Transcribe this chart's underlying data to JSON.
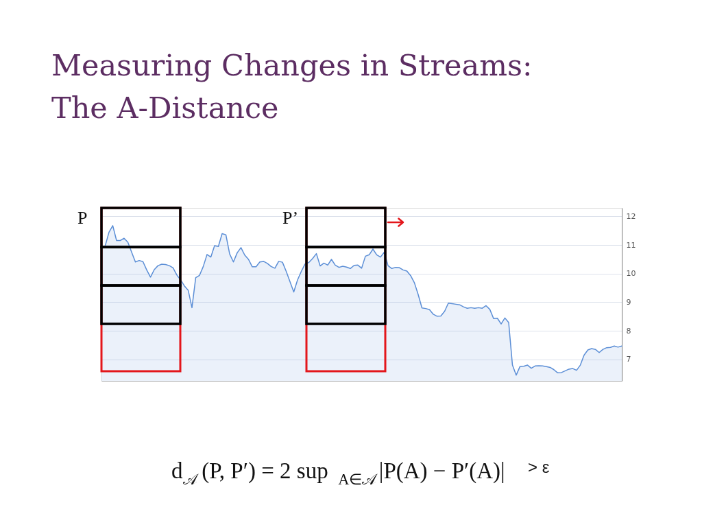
{
  "chart_data": {
    "type": "area",
    "title": "Measuring Changes in Streams:\nThe A-Distance",
    "categories": [
      null,
      null,
      null,
      null,
      null,
      null,
      null,
      null,
      null,
      null,
      null,
      null,
      null,
      null,
      null,
      null,
      null,
      null,
      null,
      null,
      null,
      null,
      null,
      null,
      null,
      null,
      null,
      null,
      null,
      null,
      null,
      null,
      null,
      null,
      null,
      null,
      null,
      null,
      null,
      null,
      null,
      null,
      null,
      null,
      null,
      null,
      null,
      null,
      null,
      null,
      null,
      null,
      null,
      null,
      null,
      null,
      null,
      null,
      null,
      null,
      null,
      null,
      null,
      null,
      null,
      null,
      null,
      null,
      null,
      null,
      null,
      null,
      null,
      null,
      null,
      null,
      null,
      null,
      null,
      null,
      null,
      null,
      null,
      null,
      null,
      null,
      null,
      null,
      null,
      null,
      null,
      null,
      null,
      null,
      null,
      null,
      null,
      null,
      null,
      null,
      null,
      null,
      null,
      null,
      null,
      null,
      null,
      null,
      null,
      null,
      null,
      null,
      null,
      null,
      null,
      null,
      null,
      null,
      null,
      null,
      null,
      null,
      null,
      null,
      null,
      null,
      null,
      null,
      null,
      null,
      null,
      null,
      null,
      null,
      null,
      null,
      null,
      null,
      null
    ],
    "series": [
      {
        "color": "#5b8ed6",
        "values": [
          10.88,
          10.98,
          11.45,
          11.68,
          11.16,
          11.16,
          11.24,
          11.1,
          10.75,
          10.41,
          10.46,
          10.42,
          10.13,
          9.88,
          10.14,
          10.28,
          10.33,
          10.32,
          10.28,
          10.2,
          9.95,
          9.78,
          9.57,
          9.42,
          8.81,
          9.86,
          9.94,
          10.25,
          10.67,
          10.58,
          10.98,
          10.95,
          11.4,
          11.36,
          10.69,
          10.41,
          10.73,
          10.91,
          10.65,
          10.5,
          10.24,
          10.24,
          10.41,
          10.43,
          10.36,
          10.25,
          10.19,
          10.43,
          10.4,
          10.08,
          9.72,
          9.36,
          9.78,
          10.08,
          10.34,
          10.39,
          10.53,
          10.7,
          10.27,
          10.37,
          10.3,
          10.5,
          10.3,
          10.22,
          10.26,
          10.23,
          10.18,
          10.29,
          10.3,
          10.19,
          10.61,
          10.66,
          10.86,
          10.66,
          10.58,
          10.75,
          10.28,
          10.18,
          10.22,
          10.21,
          10.13,
          10.09,
          9.93,
          9.68,
          9.27,
          8.8,
          8.78,
          8.74,
          8.58,
          8.51,
          8.52,
          8.68,
          8.97,
          8.95,
          8.93,
          8.91,
          8.84,
          8.79,
          8.81,
          8.79,
          8.81,
          8.79,
          8.88,
          8.75,
          8.43,
          8.44,
          8.24,
          8.45,
          8.29,
          6.8,
          6.45,
          6.75,
          6.76,
          6.8,
          6.69,
          6.77,
          6.78,
          6.77,
          6.75,
          6.72,
          6.64,
          6.53,
          6.54,
          6.6,
          6.66,
          6.68,
          6.62,
          6.8,
          7.15,
          7.33,
          7.38,
          7.35,
          7.24,
          7.35,
          7.41,
          7.42,
          7.47,
          7.43,
          7.47
        ]
      }
    ],
    "ylim": [
      6.25,
      12.3
    ],
    "yticks": [
      7,
      8,
      9,
      10,
      11,
      12
    ],
    "grid": "y",
    "annotations": [
      "P",
      "P’",
      "d$_{𝒜}$(P, P′) = 2 sup $_{A∈𝒜}$|P(A) − P′(A)|",
      "> ε"
    ]
  }
}
